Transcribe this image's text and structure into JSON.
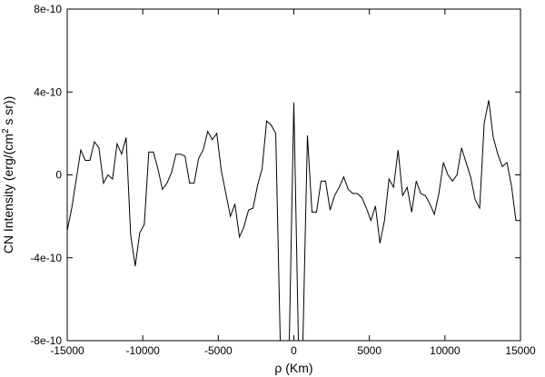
{
  "chart_data": {
    "type": "line",
    "title": "",
    "xlabel": "ρ (Km)",
    "ylabel": "CN Intensity (erg/(cm",
    "ylabel_sup": "2",
    "ylabel_tail": " s sr))",
    "xlim": [
      -15000,
      15000
    ],
    "ylim": [
      -8e-10,
      8e-10
    ],
    "xticks": [
      -15000,
      -10000,
      -5000,
      0,
      5000,
      10000,
      15000
    ],
    "xtick_labels": [
      "-15000",
      "-10000",
      "-5000",
      "0",
      "5000",
      "10000",
      "15000"
    ],
    "yticks": [
      -8e-10,
      -4e-10,
      0,
      4e-10,
      8e-10
    ],
    "ytick_labels": [
      "-8e-10",
      "-4e-10",
      "0",
      "4e-10",
      "8e-10"
    ],
    "grid": false,
    "series": [
      {
        "x": [
          -15000,
          -14700,
          -14400,
          -14100,
          -13800,
          -13500,
          -13200,
          -12900,
          -12600,
          -12300,
          -12000,
          -11700,
          -11400,
          -11100,
          -10800,
          -10500,
          -10200,
          -9900,
          -9600,
          -9300,
          -9000,
          -8700,
          -8400,
          -8100,
          -7800,
          -7500,
          -7200,
          -6900,
          -6600,
          -6300,
          -6000,
          -5700,
          -5400,
          -5100,
          -4800,
          -4500,
          -4200,
          -3900,
          -3600,
          -3300,
          -3000,
          -2700,
          -2400,
          -2100,
          -1800,
          -1500,
          -1200,
          -900,
          -600,
          -300,
          0,
          300,
          600,
          900,
          1200,
          1500,
          1800,
          2100,
          2400,
          2700,
          3000,
          3300,
          3600,
          3900,
          4200,
          4500,
          4800,
          5100,
          5400,
          5700,
          6000,
          6300,
          6600,
          6900,
          7200,
          7500,
          7800,
          8100,
          8400,
          8700,
          9000,
          9300,
          9600,
          9900,
          10200,
          10500,
          10800,
          11100,
          11400,
          11700,
          12000,
          12300,
          12600,
          12900,
          13200,
          13500,
          13800,
          14100,
          14400,
          14700,
          15000
        ],
        "y": [
          -2.7e-10,
          -1.6e-10,
          -2e-11,
          1.2e-10,
          7e-11,
          7e-11,
          1.6e-10,
          1.3e-10,
          -4e-11,
          0.0,
          -2e-11,
          1.5e-10,
          1e-10,
          1.8e-10,
          -2.9e-10,
          -4.4e-10,
          -2.8e-10,
          -2.4e-10,
          1.1e-10,
          1.1e-10,
          3e-11,
          -7e-11,
          -4e-11,
          1e-11,
          1e-10,
          1e-10,
          9e-11,
          -4e-11,
          -4e-11,
          8e-11,
          1.2e-10,
          2.1e-10,
          1.7e-10,
          2e-10,
          2e-11,
          -9e-11,
          -2e-10,
          -1.4e-10,
          -3e-10,
          -2.5e-10,
          -1.7e-10,
          -1.6e-10,
          -5e-11,
          3e-11,
          2.6e-10,
          2.4e-10,
          2e-10,
          -8e-10,
          -8e-10,
          -8e-10,
          3.5e-10,
          -8e-10,
          -8e-10,
          1.9e-10,
          -1.8e-10,
          -1.8e-10,
          -3e-11,
          -3e-11,
          -1.7e-10,
          -1e-10,
          -6e-11,
          -1e-11,
          -7e-11,
          -9e-11,
          -9e-11,
          -1.1e-10,
          -1.6e-10,
          -2.2e-10,
          -1.5e-10,
          -3.3e-10,
          -2.2e-10,
          -2e-11,
          -6e-11,
          1.2e-10,
          -1e-10,
          -6e-11,
          -1.8e-10,
          -3e-11,
          -9e-11,
          -1e-10,
          -1.4e-10,
          -1.9e-10,
          -9e-11,
          6e-11,
          0.0,
          -3e-11,
          0.0,
          1.3e-10,
          6e-11,
          -1e-11,
          -1.2e-10,
          -1.6e-10,
          2.5e-10,
          3.6e-10,
          1.8e-10,
          1e-10,
          4e-11,
          6e-11,
          -5e-11,
          -2.2e-10,
          -2.2e-10
        ]
      }
    ]
  }
}
